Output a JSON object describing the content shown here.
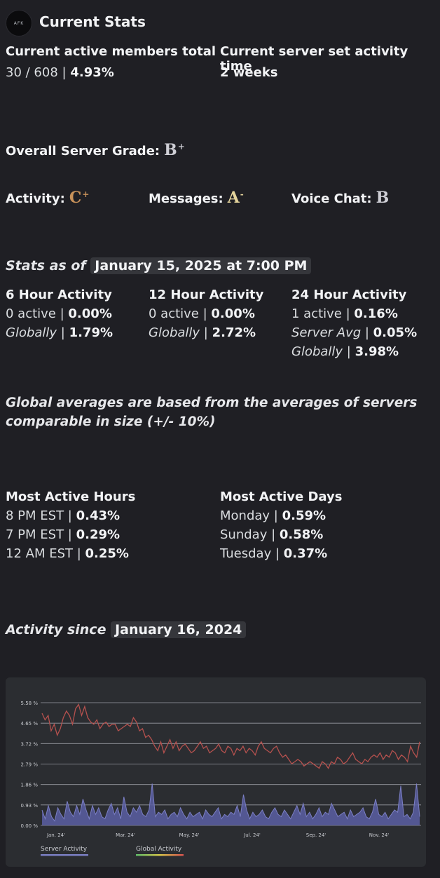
{
  "header": {
    "avatar_text": "AFK",
    "title": "Current Stats"
  },
  "members": {
    "label": "Current active members total",
    "count": "30 / 608",
    "sep": "|",
    "percent": "4.93%"
  },
  "activity_time": {
    "label": "Current server set activity time",
    "value": "2 weeks"
  },
  "grades": {
    "overall_label": "Overall Server Grade:",
    "overall": "B",
    "overall_mod": "+",
    "activity_label": "Activity:",
    "activity": "C",
    "activity_mod": "+",
    "messages_label": "Messages:",
    "messages": "A",
    "messages_mod": "-",
    "voice_label": "Voice Chat:",
    "voice": "B",
    "voice_mod": "",
    "colors": {
      "overall": "#cfcfd6",
      "activity": "#c8925a",
      "messages": "#e4d49c",
      "voice": "#cfcfd6"
    }
  },
  "stats_as_of": {
    "label": "Stats as of",
    "date": "January 15, 2025 at 7:00 PM"
  },
  "windows": [
    {
      "title": "6 Hour Activity",
      "active": "0 active",
      "pct": "0.00%",
      "global_label": "Globally",
      "global_pct": "1.79%"
    },
    {
      "title": "12 Hour Activity",
      "active": "0 active",
      "pct": "0.00%",
      "global_label": "Globally",
      "global_pct": "2.72%"
    },
    {
      "title": "24 Hour Activity",
      "active": "1 active",
      "pct": "0.16%",
      "avg_label": "Server Avg",
      "avg_pct": "0.05%",
      "global_label": "Globally",
      "global_pct": "3.98%"
    }
  ],
  "global_note": [
    "Global averages are based from the averages of servers",
    "comparable in size (+/- 10%)"
  ],
  "active_hours": {
    "title": "Most Active Hours",
    "rows": [
      {
        "label": "8 PM EST",
        "pct": "0.43%"
      },
      {
        "label": "7 PM EST",
        "pct": "0.29%"
      },
      {
        "label": "12 AM EST",
        "pct": "0.25%"
      }
    ]
  },
  "active_days": {
    "title": "Most Active Days",
    "rows": [
      {
        "label": "Monday",
        "pct": "0.59%"
      },
      {
        "label": "Sunday",
        "pct": "0.58%"
      },
      {
        "label": "Tuesday",
        "pct": "0.37%"
      }
    ]
  },
  "activity_since": {
    "label": "Activity since",
    "date": "January 16, 2024"
  },
  "chart_data": {
    "type": "area",
    "y_tick_labels": [
      "0.00 %",
      "0.93 %",
      "1.86 %",
      "2.79 %",
      "3.72 %",
      "4.65 %",
      "5.58 %"
    ],
    "y_ticks": [
      0.0,
      0.93,
      1.86,
      2.79,
      3.72,
      4.65,
      5.58
    ],
    "ylim": [
      0,
      5.58
    ],
    "x_tick_labels": [
      "Jan. 24'",
      "Mar. 24'",
      "May. 24'",
      "Jul. 24'",
      "Sep. 24'",
      "Nov. 24'"
    ],
    "grid": true,
    "legend": {
      "position": "bottom-left"
    },
    "series": [
      {
        "name": "Server Activity",
        "color": "#7b7fc4",
        "values": [
          0.7,
          0.3,
          0.9,
          0.4,
          0.2,
          0.8,
          0.5,
          0.3,
          1.1,
          0.6,
          0.4,
          0.9,
          0.5,
          1.2,
          0.7,
          0.3,
          0.9,
          0.5,
          0.8,
          0.4,
          0.3,
          0.7,
          1.0,
          0.5,
          0.8,
          0.3,
          1.3,
          0.6,
          0.4,
          0.8,
          0.6,
          0.9,
          0.5,
          0.4,
          0.7,
          1.9,
          0.4,
          0.6,
          0.5,
          0.7,
          0.3,
          0.5,
          0.6,
          0.4,
          0.8,
          0.5,
          0.3,
          0.6,
          0.4,
          0.5,
          0.6,
          0.3,
          0.7,
          0.5,
          0.4,
          0.6,
          0.8,
          0.3,
          0.5,
          0.4,
          0.6,
          0.5,
          0.9,
          0.4,
          1.4,
          0.7,
          0.3,
          0.6,
          0.4,
          0.5,
          0.7,
          0.4,
          0.3,
          0.6,
          0.8,
          0.5,
          0.4,
          0.7,
          0.5,
          0.3,
          0.6,
          0.9,
          0.5,
          1.0,
          0.4,
          0.6,
          0.3,
          0.5,
          0.8,
          0.4,
          0.6,
          0.5,
          1.0,
          0.7,
          0.4,
          0.5,
          0.6,
          0.3,
          0.7,
          0.4,
          0.5,
          0.6,
          0.8,
          0.4,
          0.3,
          0.6,
          1.2,
          0.5,
          0.4,
          0.6,
          0.3,
          0.5,
          0.7,
          0.6,
          1.8,
          0.4,
          0.5,
          0.3,
          0.6,
          1.9,
          0.4
        ]
      },
      {
        "name": "Global Activity",
        "color": "#b5514e",
        "legend_gradient": [
          "#5fbf6a",
          "#d8c84a",
          "#d9524f"
        ],
        "values": [
          5.1,
          4.8,
          5.0,
          4.3,
          4.6,
          4.1,
          4.4,
          4.9,
          5.2,
          5.0,
          4.6,
          5.3,
          5.5,
          5.0,
          5.4,
          4.9,
          4.7,
          4.6,
          4.8,
          4.4,
          4.6,
          4.7,
          4.5,
          4.6,
          4.6,
          4.3,
          4.4,
          4.5,
          4.6,
          4.5,
          4.9,
          4.7,
          4.3,
          4.4,
          4.0,
          4.1,
          3.9,
          3.6,
          3.4,
          3.8,
          3.3,
          3.6,
          3.9,
          3.5,
          3.8,
          3.4,
          3.6,
          3.7,
          3.5,
          3.3,
          3.4,
          3.6,
          3.8,
          3.5,
          3.6,
          3.3,
          3.4,
          3.5,
          3.7,
          3.4,
          3.3,
          3.6,
          3.5,
          3.2,
          3.5,
          3.4,
          3.6,
          3.3,
          3.5,
          3.4,
          3.2,
          3.6,
          3.8,
          3.5,
          3.4,
          3.3,
          3.5,
          3.6,
          3.3,
          3.1,
          3.2,
          3.0,
          2.8,
          2.9,
          3.0,
          2.9,
          2.7,
          2.8,
          2.9,
          2.8,
          2.7,
          2.6,
          2.9,
          2.8,
          2.6,
          2.9,
          2.8,
          3.1,
          3.0,
          2.8,
          2.9,
          3.1,
          3.3,
          3.0,
          2.9,
          2.8,
          3.0,
          2.9,
          3.1,
          3.2,
          3.1,
          3.3,
          3.0,
          3.2,
          3.1,
          3.4,
          3.3,
          3.0,
          3.2,
          3.1,
          2.9,
          3.6,
          3.3,
          3.1,
          3.8
        ]
      }
    ]
  }
}
